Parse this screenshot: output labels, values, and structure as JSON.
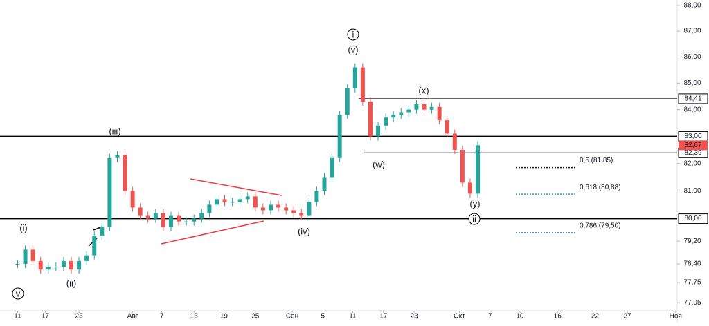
{
  "chart_data": {
    "type": "candlestick",
    "log_scale": true,
    "grid": false,
    "x": [
      0,
      1,
      2,
      3,
      4,
      5,
      6,
      7,
      8,
      9,
      10,
      11,
      12,
      13,
      14,
      15,
      16,
      17,
      18,
      19,
      20,
      21,
      22,
      23,
      24,
      25,
      26,
      27,
      28,
      29,
      30,
      31,
      32,
      33,
      34,
      35,
      36,
      37,
      38,
      39,
      40,
      41,
      42,
      43,
      44,
      45,
      46,
      47,
      48,
      49,
      50,
      51,
      52,
      53,
      54,
      55,
      56,
      57,
      58,
      59,
      60
    ],
    "series": [
      {
        "name": "Close",
        "color": "#26a69a",
        "down_color": "#ef5350",
        "values": [
          78.4,
          78.9,
          78.5,
          78.2,
          78.3,
          78.3,
          78.5,
          78.2,
          78.5,
          78.7,
          79.4,
          79.7,
          82.2,
          82.3,
          81.0,
          80.4,
          80.1,
          80.0,
          80.2,
          79.7,
          80.1,
          79.9,
          79.9,
          80.0,
          80.2,
          80.5,
          80.7,
          80.6,
          80.6,
          80.7,
          80.8,
          80.4,
          80.3,
          80.5,
          80.4,
          80.3,
          80.2,
          80.1,
          80.6,
          81.0,
          81.5,
          82.2,
          83.8,
          84.8,
          85.6,
          84.3,
          83.0,
          83.4,
          83.7,
          83.8,
          83.9,
          84.0,
          84.2,
          84.0,
          84.1,
          83.6,
          83.1,
          82.5,
          81.3,
          80.9,
          82.67
        ]
      }
    ],
    "xlim": [
      -2.3,
      86
    ],
    "xticks": [
      {
        "value": 0,
        "label": "11"
      },
      {
        "value": 3.6,
        "label": "17"
      },
      {
        "value": 8,
        "label": "23"
      },
      {
        "value": 15,
        "label": "Авг"
      },
      {
        "value": 18.8,
        "label": "7"
      },
      {
        "value": 23,
        "label": "13"
      },
      {
        "value": 26.9,
        "label": "19"
      },
      {
        "value": 31,
        "label": "25"
      },
      {
        "value": 35.8,
        "label": "Сен"
      },
      {
        "value": 39.8,
        "label": "5"
      },
      {
        "value": 43.7,
        "label": "11"
      },
      {
        "value": 47.7,
        "label": "17"
      },
      {
        "value": 51.7,
        "label": "23"
      },
      {
        "value": 57.6,
        "label": "Окт"
      },
      {
        "value": 61.6,
        "label": "7"
      },
      {
        "value": 65.5,
        "label": "10"
      },
      {
        "value": 70.4,
        "label": "16"
      },
      {
        "value": 75.3,
        "label": "22"
      },
      {
        "value": 79.5,
        "label": "27"
      },
      {
        "value": 85.8,
        "label": "Ноя"
      }
    ],
    "ylim": [
      76.77,
      88.22
    ],
    "yticks": [
      {
        "value": 88,
        "label": "88,00"
      },
      {
        "value": 87,
        "label": "87,00"
      },
      {
        "value": 86,
        "label": "86,00"
      },
      {
        "value": 85,
        "label": "85,00"
      },
      {
        "value": 84,
        "label": "84,00"
      },
      {
        "value": 82,
        "label": "82,00"
      },
      {
        "value": 81,
        "label": "81,00"
      },
      {
        "value": 79.2,
        "label": "79,20"
      },
      {
        "value": 78.4,
        "label": "78,40"
      },
      {
        "value": 77.75,
        "label": "77,75"
      },
      {
        "value": 77.05,
        "label": "77,05"
      }
    ],
    "levels": [
      {
        "value": 83,
        "label": "83,00",
        "thick": true
      },
      {
        "value": 80,
        "label": "80,00",
        "thick": true
      },
      {
        "value": 84.41,
        "label": "84,41",
        "thick": false
      },
      {
        "value": 82.39,
        "label": "82,39",
        "thick": false
      }
    ],
    "last_price": {
      "value": 82.67,
      "label": "82,67"
    },
    "fib_levels": [
      {
        "value": 81.85,
        "label": "0,5 (81,85)",
        "color": "#131722"
      },
      {
        "value": 80.88,
        "label": "0,618 (80,88)",
        "color": "#22ab94"
      },
      {
        "value": 79.5,
        "label": "0,786 (79,50)",
        "color": "#2e8bcc"
      }
    ],
    "wave_labels": [
      "(i)",
      "(ii)",
      "(iii)",
      "(iv)",
      "(v)",
      "(w)",
      "(x)",
      "(y)",
      "v",
      "i",
      "ii"
    ]
  }
}
